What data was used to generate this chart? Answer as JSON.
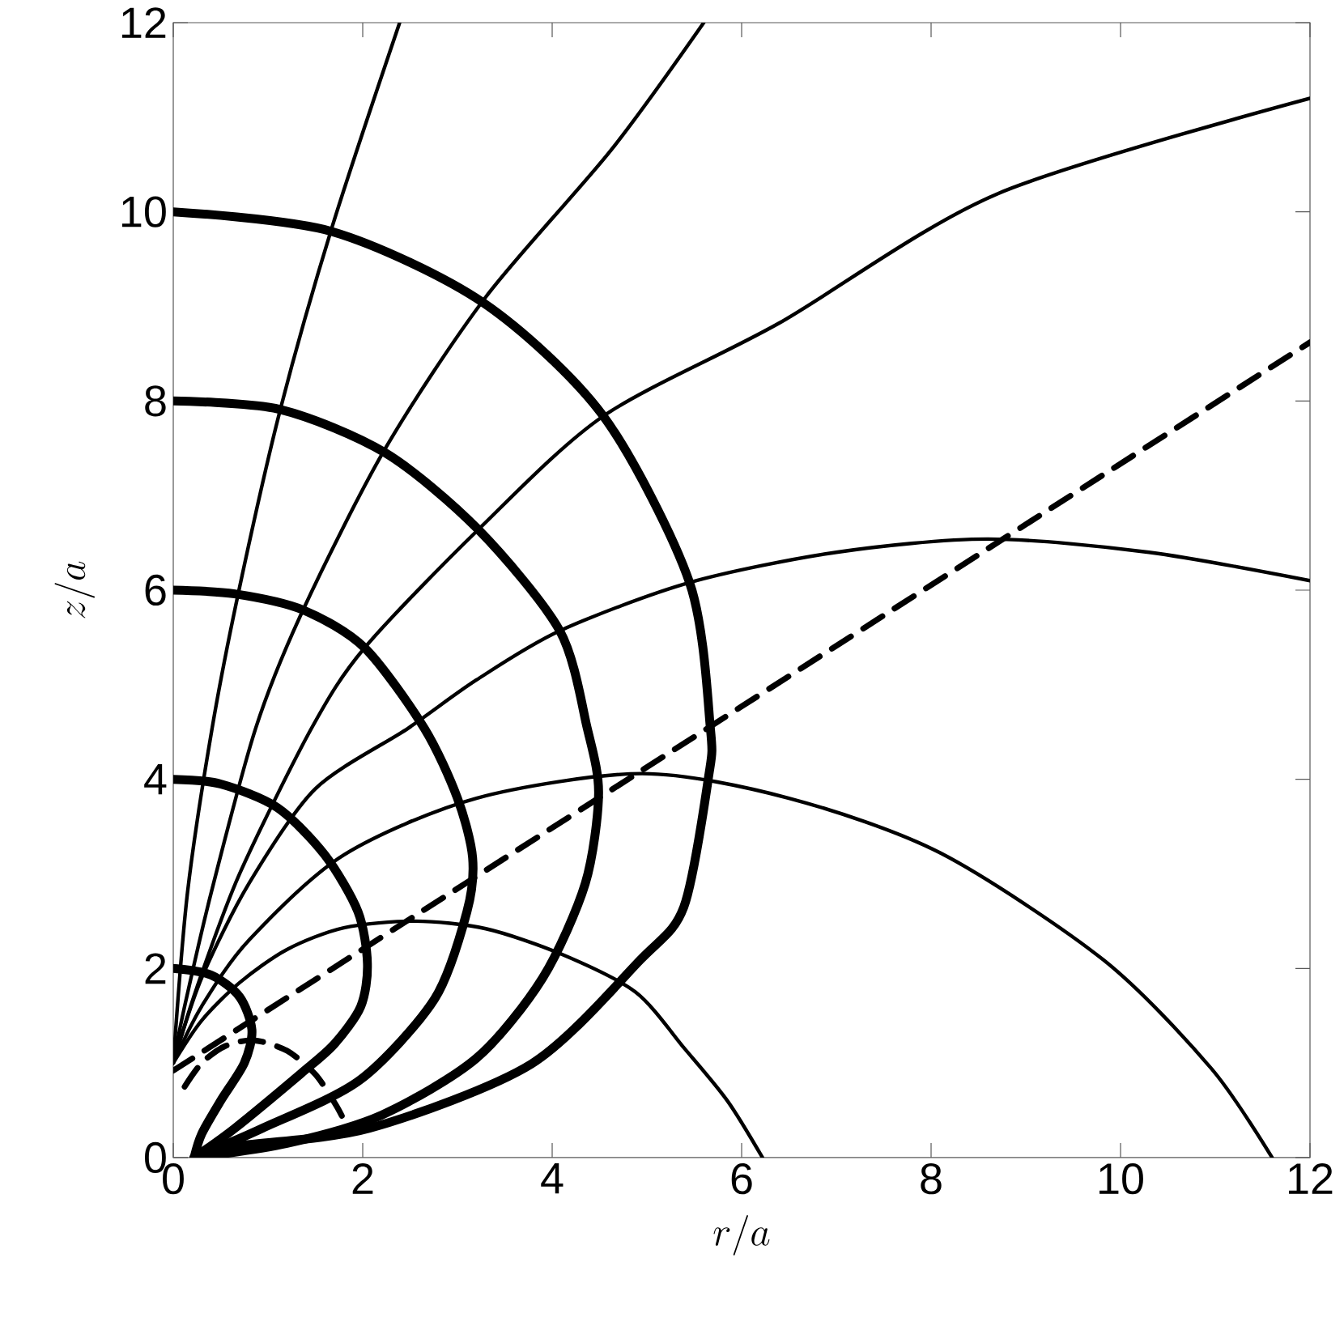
{
  "chart_data": {
    "type": "line",
    "xlabel": "r/a",
    "ylabel": "z/a",
    "xlim": [
      0,
      12
    ],
    "ylim": [
      0,
      12
    ],
    "xticks": [
      0,
      2,
      4,
      6,
      8,
      10,
      12
    ],
    "yticks": [
      0,
      2,
      4,
      6,
      8,
      10,
      12
    ],
    "grid": false,
    "marker": "none",
    "series": [
      {
        "color": "#000000",
        "line_style": "solid",
        "x": [
          0,
          1.68,
          3.27,
          4.54,
          5.45,
          5.67,
          5.65,
          5.39,
          4.93,
          3.78,
          2.07,
          0.65,
          0.22
        ],
        "values": [
          10,
          9.79,
          9.04,
          7.84,
          6.08,
          4.54,
          4.02,
          2.65,
          2.09,
          0.99,
          0.31,
          0.12,
          0
        ]
      },
      {
        "color": "#000000",
        "line_style": "solid",
        "x": [
          0,
          1.13,
          2.24,
          3.22,
          4.08,
          4.37,
          4.49,
          4.35,
          3.9,
          3.2,
          2.2,
          1.2,
          0.22
        ],
        "values": [
          8,
          7.91,
          7.45,
          6.64,
          5.57,
          4.54,
          3.85,
          2.9,
          1.9,
          1.05,
          0.45,
          0.15,
          0
        ]
      },
      {
        "color": "#000000",
        "line_style": "solid",
        "x": [
          0,
          0.65,
          1.37,
          2.02,
          2.65,
          3.0,
          3.16,
          3.1,
          2.76,
          1.97,
          0.94,
          0.22
        ],
        "values": [
          6,
          5.96,
          5.79,
          5.39,
          4.54,
          3.8,
          3.17,
          2.6,
          1.68,
          0.82,
          0.31,
          0
        ]
      },
      {
        "color": "#000000",
        "line_style": "solid",
        "x": [
          0,
          0.5,
          1.1,
          1.6,
          1.95,
          2.05,
          1.98,
          1.7,
          1.35,
          0.65,
          0.22
        ],
        "values": [
          4,
          3.95,
          3.7,
          3.2,
          2.6,
          2.05,
          1.6,
          1.2,
          0.89,
          0.31,
          0
        ]
      },
      {
        "color": "#000000",
        "line_style": "solid",
        "x": [
          0,
          0.4,
          0.7,
          0.83,
          0.75,
          0.5,
          0.3,
          0.22
        ],
        "values": [
          2,
          1.93,
          1.7,
          1.35,
          1.0,
          0.6,
          0.25,
          0
        ]
      },
      {
        "color": "#000000",
        "line_style": "solid",
        "x": [
          0,
          0.15,
          0.41,
          0.7,
          1.13,
          1.68,
          2.39
        ],
        "values": [
          1,
          2.8,
          4.54,
          6.03,
          7.91,
          9.85,
          12
        ]
      },
      {
        "color": "#000000",
        "line_style": "solid",
        "x": [
          0,
          0.12,
          0.4,
          0.87,
          1.37,
          2.24,
          3.3,
          4.62,
          5.6
        ],
        "values": [
          1,
          1.6,
          2.8,
          4.54,
          5.79,
          7.5,
          9.1,
          10.65,
          12
        ]
      },
      {
        "color": "#000000",
        "line_style": "solid",
        "x": [
          0,
          0.25,
          0.7,
          1.46,
          2.02,
          3.22,
          4.54,
          6.39,
          8.7,
          12
        ],
        "values": [
          1,
          1.8,
          3.0,
          4.54,
          5.39,
          6.64,
          7.84,
          8.82,
          10.19,
          11.2
        ]
      },
      {
        "color": "#000000",
        "line_style": "solid",
        "x": [
          0,
          0.3,
          0.8,
          1.5,
          2.48,
          3.2,
          4.08,
          5.45,
          7,
          8.6,
          10.3,
          12
        ],
        "values": [
          1,
          1.9,
          2.9,
          3.9,
          4.54,
          5.05,
          5.57,
          6.08,
          6.4,
          6.54,
          6.4,
          6.1
        ]
      },
      {
        "color": "#000000",
        "line_style": "solid",
        "x": [
          0,
          0.3,
          0.8,
          1.8,
          3.2,
          4.95,
          6.5,
          8.1,
          9.82,
          10.96,
          11.6
        ],
        "values": [
          1,
          1.6,
          2.3,
          3.2,
          3.8,
          4.06,
          3.8,
          3.22,
          2.09,
          0.94,
          0
        ]
      },
      {
        "color": "#000000",
        "line_style": "solid",
        "x": [
          0,
          0.3,
          0.7,
          1.2,
          1.8,
          2.55,
          3.3,
          4.1,
          4.88,
          5.4,
          5.85,
          6.22
        ],
        "values": [
          1,
          1.45,
          1.85,
          2.2,
          2.43,
          2.5,
          2.42,
          2.15,
          1.75,
          1.15,
          0.6,
          0
        ]
      },
      {
        "color": "#000000",
        "line_style": "dashed",
        "x": [
          0,
          12
        ],
        "values": [
          0.92,
          8.62
        ]
      },
      {
        "color": "#000000",
        "line_style": "dashed",
        "x": [
          0.12,
          0.3,
          0.55,
          0.85,
          1.2,
          1.5,
          1.72,
          1.85
        ],
        "values": [
          0.75,
          1.0,
          1.18,
          1.24,
          1.13,
          0.88,
          0.55,
          0.3
        ]
      }
    ]
  }
}
